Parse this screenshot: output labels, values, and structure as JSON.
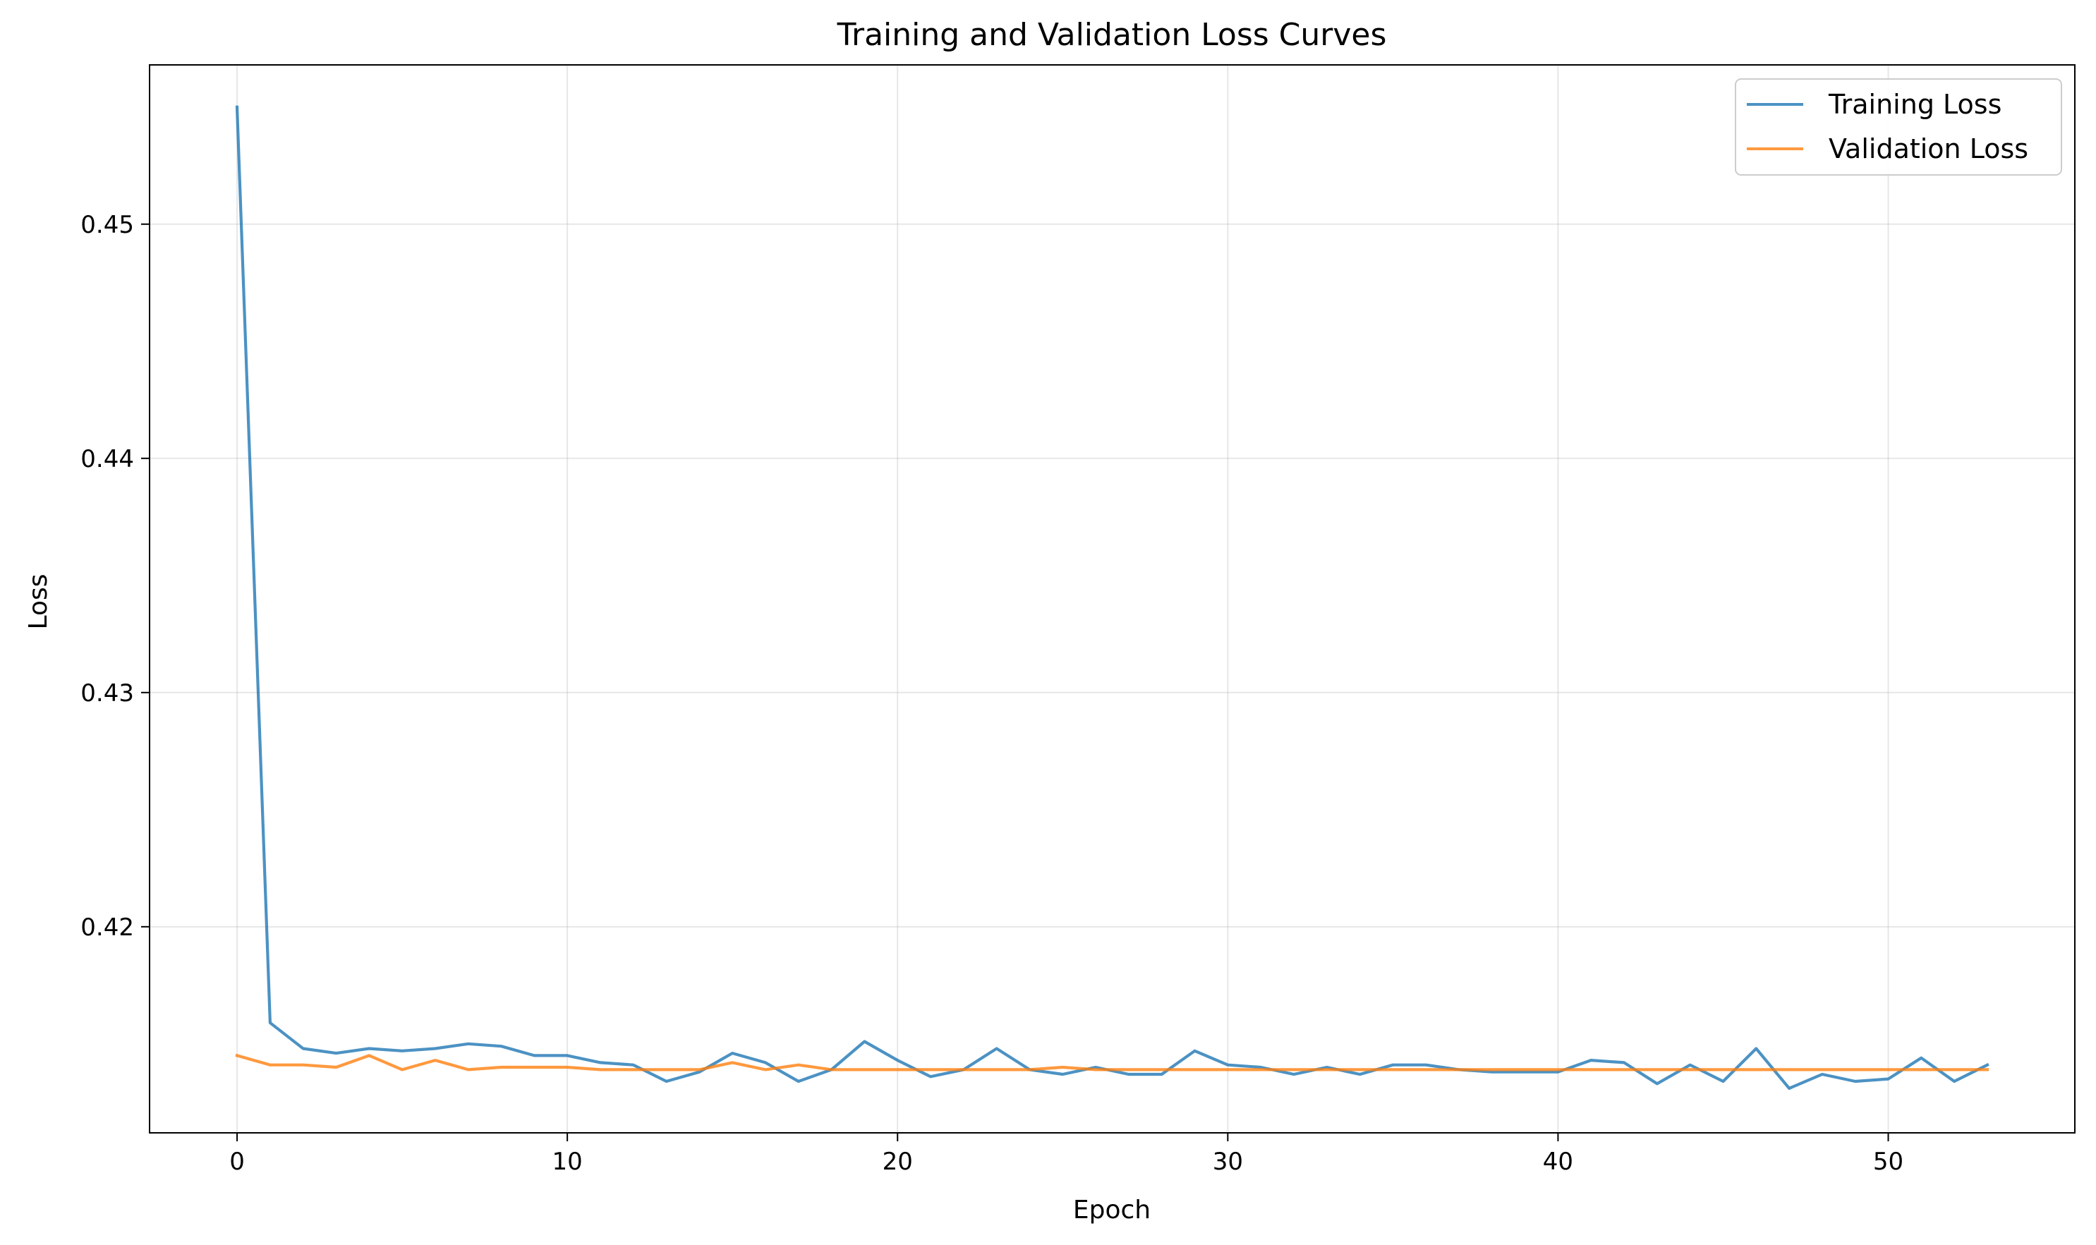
{
  "chart_data": {
    "type": "line",
    "title": "Training and Validation Loss Curves",
    "xlabel": "Epoch",
    "ylabel": "Loss",
    "xlim": [
      -2.65,
      55.65
    ],
    "ylim": [
      0.4112,
      0.4568
    ],
    "xticks": [
      0,
      10,
      20,
      30,
      40,
      50
    ],
    "xtick_labels": [
      "0",
      "10",
      "20",
      "30",
      "40",
      "50"
    ],
    "yticks": [
      0.42,
      0.43,
      0.44,
      0.45
    ],
    "ytick_labels": [
      "0.42",
      "0.43",
      "0.44",
      "0.45"
    ],
    "grid": true,
    "legend_position": "top-right",
    "x": [
      0,
      1,
      2,
      3,
      4,
      5,
      6,
      7,
      8,
      9,
      10,
      11,
      12,
      13,
      14,
      15,
      16,
      17,
      18,
      19,
      20,
      21,
      22,
      23,
      24,
      25,
      26,
      27,
      28,
      29,
      30,
      31,
      32,
      33,
      34,
      35,
      36,
      37,
      38,
      39,
      40,
      41,
      42,
      43,
      44,
      45,
      46,
      47,
      48,
      49,
      50,
      51,
      52,
      53
    ],
    "series": [
      {
        "name": "Training Loss",
        "color": "#1f77b4",
        "values": [
          0.455,
          0.4159,
          0.4148,
          0.4146,
          0.4148,
          0.4147,
          0.4148,
          0.415,
          0.4149,
          0.4145,
          0.4145,
          0.4142,
          0.4141,
          0.4134,
          0.4138,
          0.4146,
          0.4142,
          0.4134,
          0.4139,
          0.4151,
          0.4143,
          0.4136,
          0.4139,
          0.4148,
          0.4139,
          0.4137,
          0.414,
          0.4137,
          0.4137,
          0.4147,
          0.4141,
          0.414,
          0.4137,
          0.414,
          0.4137,
          0.4141,
          0.4141,
          0.4139,
          0.4138,
          0.4138,
          0.4138,
          0.4143,
          0.4142,
          0.4133,
          0.4141,
          0.4134,
          0.4148,
          0.4131,
          0.4137,
          0.4134,
          0.4135,
          0.4144,
          0.4134,
          0.4141
        ]
      },
      {
        "name": "Validation Loss",
        "color": "#ff7f0e",
        "values": [
          0.4145,
          0.4141,
          0.4141,
          0.414,
          0.4145,
          0.4139,
          0.4143,
          0.4139,
          0.414,
          0.414,
          0.414,
          0.4139,
          0.4139,
          0.4139,
          0.4139,
          0.4142,
          0.4139,
          0.4141,
          0.4139,
          0.4139,
          0.4139,
          0.4139,
          0.4139,
          0.4139,
          0.4139,
          0.414,
          0.4139,
          0.4139,
          0.4139,
          0.4139,
          0.4139,
          0.4139,
          0.4139,
          0.4139,
          0.4139,
          0.4139,
          0.4139,
          0.4139,
          0.4139,
          0.4139,
          0.4139,
          0.4139,
          0.4139,
          0.4139,
          0.4139,
          0.4139,
          0.4139,
          0.4139,
          0.4139,
          0.4139,
          0.4139,
          0.4139,
          0.4139,
          0.4139
        ]
      }
    ]
  }
}
